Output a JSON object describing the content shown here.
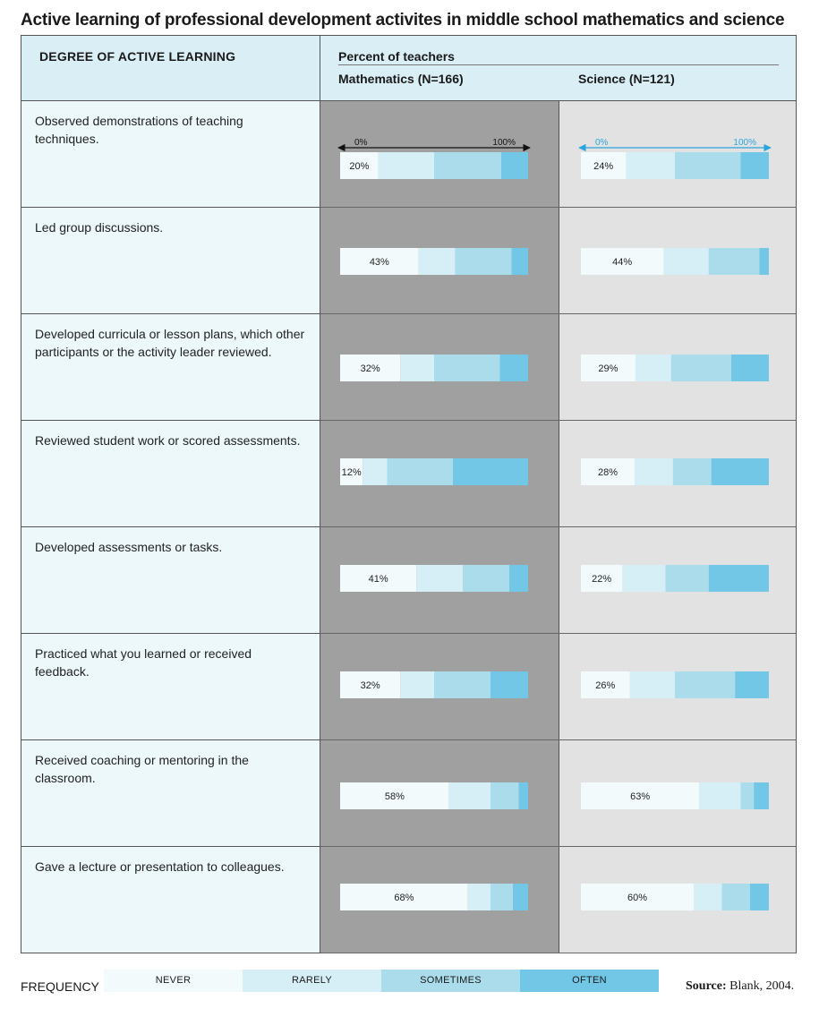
{
  "title": "Active learning of professional development activites in middle school mathematics and science",
  "header": {
    "degree": "DEGREE OF ACTIVE LEARNING",
    "percent": "Percent of teachers",
    "math": "Mathematics (N=166)",
    "science": "Science (N=121)"
  },
  "rows": [
    {
      "label": "Observed demonstrations of teaching techniques."
    },
    {
      "label": "Led group discussions."
    },
    {
      "label": "Developed curricula or lesson plans, which other participants or the activity leader reviewed."
    },
    {
      "label": "Reviewed student work or scored assessments."
    },
    {
      "label": "Developed assessments or tasks."
    },
    {
      "label": "Practiced what you learned or received feedback."
    },
    {
      "label": "Received coaching or mentoring in the classroom."
    },
    {
      "label": "Gave a lecture or presentation to colleagues."
    }
  ],
  "scale": {
    "min_label": "0%",
    "max_label": "100%"
  },
  "legend": {
    "label": "FREQUENCY",
    "items": [
      "NEVER",
      "RARELY",
      "SOMETIMES",
      "OFTEN"
    ],
    "colors": [
      "#f2fafc",
      "#d6eef6",
      "#abdcec",
      "#72c7e6"
    ]
  },
  "source": {
    "label": "Source:",
    "text": "Blank, 2004."
  },
  "colors": {
    "math_bg": "#a0a0a0",
    "science_bg": "#e2e2e2",
    "header_bg": "#d9eef5",
    "label_bg": "#edf8fb",
    "science_axis": "#2aa4dc"
  },
  "chart_data": {
    "type": "bar",
    "stacked": true,
    "orientation": "horizontal",
    "title": "Active learning of professional development activites in middle school mathematics and science",
    "unit": "percent",
    "xlim": [
      0,
      100
    ],
    "categories": [
      "Observed demonstrations of teaching techniques.",
      "Led group discussions.",
      "Developed curricula or lesson plans, which other participants or the activity leader reviewed.",
      "Reviewed student work or scored assessments.",
      "Developed assessments or tasks.",
      "Practiced what you learned or received feedback.",
      "Received coaching or mentoring in the classroom.",
      "Gave a lecture or presentation to colleagues."
    ],
    "segments": [
      "NEVER",
      "RARELY",
      "SOMETIMES",
      "OFTEN"
    ],
    "groups": [
      {
        "name": "Mathematics (N=166)",
        "values": [
          [
            20,
            29,
            35,
            14
          ],
          [
            43,
            20,
            31,
            9
          ],
          [
            32,
            18,
            35,
            15
          ],
          [
            12,
            13,
            35,
            40
          ],
          [
            41,
            25,
            25,
            10
          ],
          [
            32,
            18,
            30,
            20
          ],
          [
            58,
            22,
            15,
            5
          ],
          [
            68,
            12,
            12,
            8
          ]
        ]
      },
      {
        "name": "Science (N=121)",
        "values": [
          [
            24,
            26,
            35,
            15
          ],
          [
            44,
            24,
            27,
            5
          ],
          [
            29,
            19,
            32,
            20
          ],
          [
            28,
            20,
            20,
            30
          ],
          [
            22,
            23,
            23,
            32
          ],
          [
            26,
            24,
            32,
            18
          ],
          [
            63,
            22,
            7,
            8
          ],
          [
            60,
            15,
            15,
            10
          ]
        ]
      }
    ],
    "labels": {
      "Mathematics (N=166)": [
        "20%",
        "43%",
        "32%",
        "12%",
        "41%",
        "32%",
        "58%",
        "68%"
      ],
      "Science (N=121)": [
        "24%",
        "44%",
        "29%",
        "28%",
        "22%",
        "26%",
        "63%",
        "60%"
      ]
    }
  }
}
